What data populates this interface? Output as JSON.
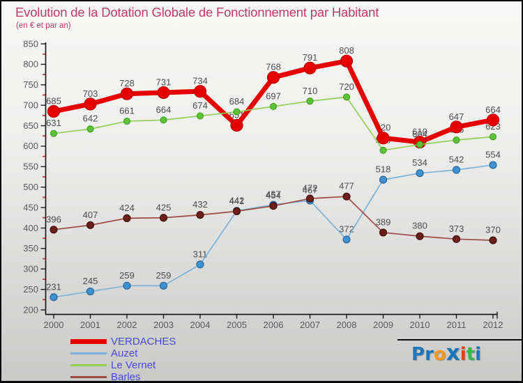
{
  "title": {
    "text": "Evolution de la Dotation Globale de Fonctionnement par Habitant",
    "subtitle": "(en € et par an)",
    "color": "#c23a68"
  },
  "chart_data": {
    "type": "line",
    "title": "Evolution de la Dotation Globale de Fonctionnement par Habitant",
    "subtitle": "(en € et par an)",
    "xlabel": "",
    "ylabel": "",
    "x": [
      2000,
      2001,
      2002,
      2003,
      2004,
      2005,
      2006,
      2007,
      2008,
      2009,
      2010,
      2011,
      2012
    ],
    "series": [
      {
        "name": "VERDACHES",
        "values": [
          685,
          703,
          728,
          731,
          734,
          651,
          768,
          791,
          808,
          620,
          610,
          647,
          664
        ],
        "color": "#e60000",
        "marker_fill": "#e60000",
        "marker_stroke": "#bf0000",
        "line_width": 7,
        "marker_radius": 8.5
      },
      {
        "name": "Auzet",
        "values": [
          231,
          245,
          259,
          259,
          311,
          442,
          457,
          467,
          372,
          518,
          534,
          542,
          554
        ],
        "color": "#7bb2d9",
        "marker_fill": "#3e92d2",
        "marker_stroke": "#2a6496",
        "line_width": 1.7,
        "marker_radius": 5
      },
      {
        "name": "Le Vernet",
        "values": [
          631,
          642,
          661,
          664,
          674,
          684,
          697,
          710,
          720,
          590,
          604,
          615,
          623
        ],
        "color": "#90d055",
        "marker_fill": "#5fc138",
        "marker_stroke": "#3da21f",
        "line_width": 1.7,
        "marker_radius": 4.5
      },
      {
        "name": "Barles",
        "values": [
          396,
          407,
          424,
          425,
          432,
          441,
          454,
          472,
          477,
          389,
          380,
          373,
          370
        ],
        "color": "#9c4a40",
        "marker_fill": "#6e1f1a",
        "marker_stroke": "#400f0c",
        "line_width": 1.7,
        "marker_radius": 5
      }
    ],
    "ylim": [
      200,
      850
    ],
    "y_major_step": 50,
    "y_minor_step": 25,
    "minor_tick_color": "#cc3b3b",
    "axis_color": "#1a1a1a",
    "grid": false,
    "legend_position": "bottom-left"
  },
  "legend": {
    "text_color": "#4a4ad6"
  },
  "logo": {
    "name": "Proxiti",
    "letters": [
      {
        "ch": "P",
        "color": "#1b75bc"
      },
      {
        "ch": "r",
        "color": "#1b75bc"
      },
      {
        "ch": "o",
        "color": "#f7941d"
      },
      {
        "ch": "x",
        "color": "#1b75bc"
      },
      {
        "ch": "i",
        "color": "#e8420c"
      },
      {
        "ch": "t",
        "color": "#39b54a"
      },
      {
        "ch": "i",
        "color": "#1b75bc"
      }
    ]
  }
}
